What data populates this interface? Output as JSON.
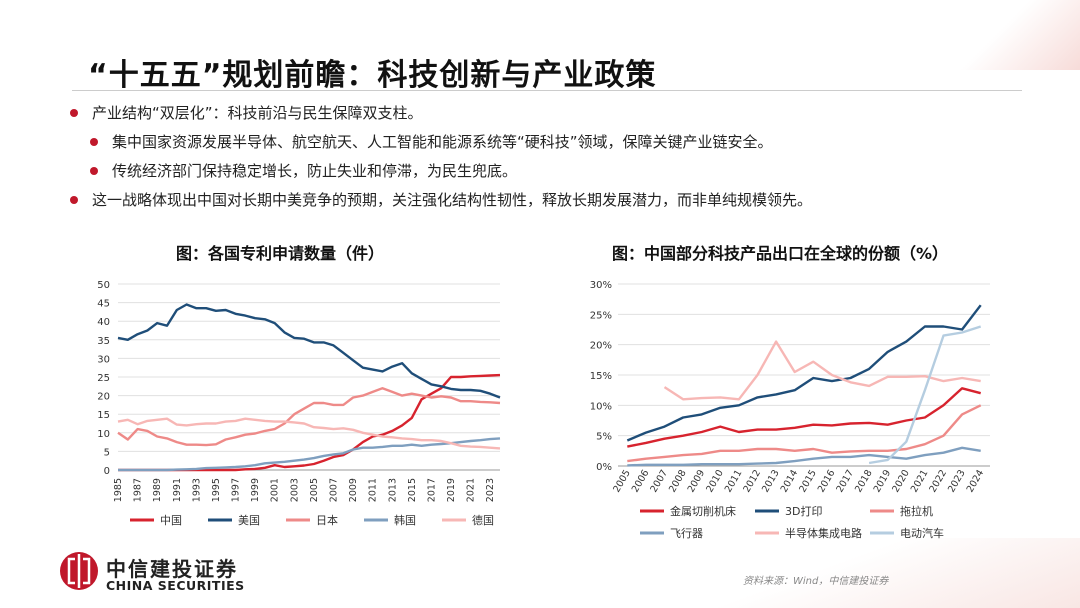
{
  "title": "“十五五”规划前瞻：科技创新与产业政策",
  "bullets": [
    {
      "text": "产业结构“双层化”：科技前沿与民生保障双支柱。",
      "level": 1
    },
    {
      "text": "集中国家资源发展半导体、航空航天、人工智能和能源系统等“硬科技”领域，保障关键产业链安全。",
      "level": 2
    },
    {
      "text": "传统经济部门保持稳定增长，防止失业和停滞，为民生兜底。",
      "level": 2
    },
    {
      "text": "这一战略体现出中国对长期中美竞争的预期，关注强化结构性韧性，释放长期发展潜力，而非单纯规模领先。",
      "level": 1
    }
  ],
  "colors": {
    "accent": "#c0182b",
    "china": "#d7232e",
    "us": "#1f4e79",
    "japan": "#ee8a88",
    "korea": "#7f9fbf",
    "germany": "#f7b7b5"
  },
  "chart_data": [
    {
      "type": "line",
      "title": "图：各国专利申请数量（件）",
      "ylim": [
        0,
        50
      ],
      "yticks": [
        "0",
        "5",
        "10",
        "15",
        "20",
        "25",
        "30",
        "35",
        "40",
        "45",
        "50"
      ],
      "xtick_labels": [
        "1985",
        "1987",
        "1989",
        "1991",
        "1993",
        "1995",
        "1997",
        "1999",
        "2001",
        "2003",
        "2005",
        "2007",
        "2009",
        "2011",
        "2013",
        "2015",
        "2017",
        "2019",
        "2021",
        "2023"
      ],
      "x": [
        1985,
        1986,
        1987,
        1988,
        1989,
        1990,
        1991,
        1992,
        1993,
        1994,
        1995,
        1996,
        1997,
        1998,
        1999,
        2000,
        2001,
        2002,
        2003,
        2004,
        2005,
        2006,
        2007,
        2008,
        2009,
        2010,
        2011,
        2012,
        2013,
        2014,
        2015,
        2016,
        2017,
        2018,
        2019,
        2020,
        2021,
        2022,
        2023,
        2024
      ],
      "series": [
        {
          "name": "中国",
          "color": "#d7232e",
          "values": [
            0,
            0,
            0,
            0,
            0,
            0,
            0,
            0,
            0,
            0,
            0,
            0,
            0,
            0.2,
            0.3,
            0.6,
            1.3,
            0.8,
            1.0,
            1.2,
            1.6,
            2.5,
            3.5,
            4.0,
            5.5,
            7.5,
            9.0,
            9.5,
            10.5,
            12.0,
            14.0,
            19.0,
            20.5,
            22.0,
            25.0,
            25.0,
            25.2,
            25.3,
            25.4,
            25.5
          ]
        },
        {
          "name": "美国",
          "color": "#1f4e79",
          "values": [
            35.5,
            35.0,
            36.5,
            37.5,
            39.5,
            38.8,
            43.0,
            44.5,
            43.5,
            43.5,
            42.8,
            43.0,
            42.0,
            41.5,
            40.8,
            40.5,
            39.5,
            37.0,
            35.5,
            35.3,
            34.3,
            34.3,
            33.5,
            31.5,
            29.5,
            27.5,
            27.0,
            26.5,
            27.8,
            28.7,
            26.0,
            24.5,
            23.0,
            22.5,
            21.8,
            21.5,
            21.5,
            21.3,
            20.5,
            19.5
          ]
        },
        {
          "name": "日本",
          "color": "#ee8a88",
          "values": [
            10.0,
            8.2,
            11.0,
            10.5,
            9.0,
            8.5,
            7.5,
            6.8,
            6.8,
            6.7,
            6.9,
            8.2,
            8.8,
            9.5,
            9.8,
            10.5,
            11.0,
            12.5,
            15.0,
            16.5,
            18.0,
            18.0,
            17.5,
            17.5,
            19.5,
            20.0,
            21.0,
            22.0,
            21.0,
            20.0,
            20.5,
            20.0,
            19.5,
            19.8,
            19.5,
            18.5,
            18.5,
            18.3,
            18.2,
            18.0
          ]
        },
        {
          "name": "韩国",
          "color": "#7f9fbf",
          "values": [
            0,
            0,
            0,
            0,
            0,
            0,
            0.1,
            0.2,
            0.3,
            0.5,
            0.6,
            0.7,
            0.8,
            1.0,
            1.3,
            1.8,
            2.0,
            2.2,
            2.5,
            2.8,
            3.2,
            3.8,
            4.2,
            4.5,
            5.5,
            6.0,
            6.0,
            6.2,
            6.5,
            6.5,
            6.8,
            6.5,
            6.8,
            7.0,
            7.2,
            7.5,
            7.8,
            8.0,
            8.3,
            8.5
          ]
        },
        {
          "name": "德国",
          "color": "#f7b7b5",
          "values": [
            13.0,
            13.5,
            12.3,
            13.2,
            13.5,
            13.8,
            12.2,
            12.0,
            12.3,
            12.5,
            12.5,
            13.0,
            13.2,
            13.8,
            13.5,
            13.2,
            13.0,
            13.0,
            12.8,
            12.5,
            11.5,
            11.3,
            11.0,
            11.2,
            10.8,
            10.0,
            9.5,
            9.0,
            8.8,
            8.5,
            8.3,
            8.0,
            8.0,
            7.8,
            7.2,
            6.5,
            6.3,
            6.2,
            6.0,
            5.8
          ]
        }
      ],
      "legend": [
        "中国",
        "美国",
        "日本",
        "韩国",
        "德国"
      ]
    },
    {
      "type": "line",
      "title": "图：中国部分科技产品出口在全球的份额（%）",
      "ylim": [
        0,
        30
      ],
      "yticks": [
        "0%",
        "5%",
        "10%",
        "15%",
        "20%",
        "25%",
        "30%"
      ],
      "x": [
        "2005",
        "2006",
        "2007",
        "2008",
        "2009",
        "2010",
        "2011",
        "2012",
        "2013",
        "2014",
        "2015",
        "2016",
        "2017",
        "2018",
        "2019",
        "2020",
        "2021",
        "2022",
        "2023",
        "2024"
      ],
      "series": [
        {
          "name": "金属切削机床",
          "color": "#d7232e",
          "values": [
            3.2,
            3.8,
            4.5,
            5.0,
            5.6,
            6.5,
            5.6,
            6.0,
            6.0,
            6.3,
            6.8,
            6.7,
            7.0,
            7.1,
            6.8,
            7.5,
            8.0,
            10.0,
            12.8,
            12.0
          ]
        },
        {
          "name": "3D打印",
          "color": "#1f4e79",
          "values": [
            4.2,
            5.5,
            6.5,
            8.0,
            8.5,
            9.6,
            10.0,
            11.3,
            11.8,
            12.5,
            14.5,
            14.0,
            14.5,
            16.0,
            18.8,
            20.5,
            23.0,
            23.0,
            22.5,
            26.5
          ]
        },
        {
          "name": "拖拉机",
          "color": "#ee8a88",
          "values": [
            0.8,
            1.2,
            1.5,
            1.8,
            2.0,
            2.5,
            2.5,
            2.8,
            2.8,
            2.5,
            2.8,
            2.2,
            2.4,
            2.5,
            2.5,
            2.8,
            3.6,
            5.0,
            8.5,
            10.0
          ]
        },
        {
          "name": "飞行器",
          "color": "#7f9fbf",
          "values": [
            0.1,
            0.2,
            0.2,
            0.2,
            0.3,
            0.3,
            0.3,
            0.4,
            0.5,
            0.8,
            1.2,
            1.5,
            1.5,
            1.8,
            1.5,
            1.2,
            1.8,
            2.2,
            3.0,
            2.5
          ]
        },
        {
          "name": "半导体集成电路",
          "color": "#f7b7b5",
          "start_index": 2,
          "values": [
            null,
            null,
            13.0,
            11.0,
            11.2,
            11.3,
            11.0,
            15.0,
            20.5,
            15.5,
            17.2,
            15.0,
            13.8,
            13.2,
            14.7,
            14.7,
            14.8,
            14.0,
            14.5,
            14.0
          ]
        },
        {
          "name": "电动汽车",
          "color": "#b5cde0",
          "values": [
            null,
            null,
            null,
            null,
            null,
            null,
            null,
            null,
            null,
            null,
            null,
            null,
            null,
            0.5,
            1.0,
            4.0,
            12.5,
            21.5,
            22.0,
            23.0
          ]
        }
      ],
      "legend": [
        "金属切削机床",
        "3D打印",
        "拖拉机",
        "飞行器",
        "半导体集成电路",
        "电动汽车"
      ]
    }
  ],
  "logo": {
    "cn": "中信建投证券",
    "en": "CHINA SECURITIES"
  },
  "source": "资料来源：Wind，中信建投证券"
}
